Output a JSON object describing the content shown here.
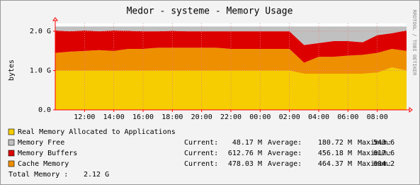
{
  "chart_data": {
    "type": "stacked-area",
    "title": "Medor - systeme - Memory Usage",
    "y_label": "bytes",
    "watermark": "RRDTOOL / TOBI OETIKER",
    "categories": [
      null,
      null,
      "12:00",
      null,
      "14:00",
      null,
      "16:00",
      null,
      "18:00",
      null,
      "20:00",
      null,
      "22:00",
      null,
      "00:00",
      null,
      "02:00",
      null,
      "04:00",
      null,
      "06:00",
      null,
      "08:00",
      null,
      null
    ],
    "ylim": [
      0,
      2.2
    ],
    "yticks": [
      {
        "value": 0,
        "label": "0.0"
      },
      {
        "value": 1,
        "label": "1.0 G"
      },
      {
        "value": 2,
        "label": "2.0 G"
      }
    ],
    "grid": true,
    "stat_labels": [
      "Current:",
      "Average:",
      "Maximum:"
    ],
    "series": [
      {
        "name": "Real Memory Allocated to Applications",
        "color": "#f5cd00",
        "values": [
          1.0,
          1.0,
          1.0,
          1.0,
          1.0,
          1.0,
          1.0,
          1.0,
          1.0,
          1.0,
          1.0,
          1.0,
          1.0,
          1.0,
          1.0,
          1.0,
          1.0,
          0.92,
          0.92,
          0.92,
          0.92,
          0.92,
          0.95,
          1.08,
          1.0
        ]
      },
      {
        "name": "Memory Free",
        "color": "#c0c0c0",
        "stats": [
          "48.17 M",
          "180.72 M",
          "543.6"
        ],
        "values": [
          0.1,
          0.12,
          0.1,
          0.12,
          0.1,
          0.11,
          0.12,
          0.12,
          0.11,
          0.12,
          0.12,
          0.12,
          0.12,
          0.12,
          0.12,
          0.12,
          0.12,
          0.47,
          0.42,
          0.37,
          0.37,
          0.4,
          0.22,
          0.17,
          0.1
        ]
      },
      {
        "name": "Memory Buffers",
        "color": "#dd0000",
        "stats": [
          "612.76 M",
          "456.18 M",
          "617.6"
        ],
        "values": [
          0.57,
          0.52,
          0.52,
          0.48,
          0.52,
          0.46,
          0.45,
          0.42,
          0.43,
          0.42,
          0.42,
          0.42,
          0.45,
          0.45,
          0.45,
          0.45,
          0.45,
          0.45,
          0.35,
          0.4,
          0.37,
          0.32,
          0.45,
          0.4,
          0.52
        ]
      },
      {
        "name": "Cache Memory",
        "color": "#ee8f00",
        "stats": [
          "478.03 M",
          "464.37 M",
          "604.2"
        ],
        "values": [
          0.45,
          0.48,
          0.5,
          0.52,
          0.5,
          0.55,
          0.55,
          0.58,
          0.58,
          0.58,
          0.58,
          0.58,
          0.55,
          0.55,
          0.55,
          0.55,
          0.55,
          0.28,
          0.43,
          0.43,
          0.46,
          0.48,
          0.5,
          0.47,
          0.5
        ]
      }
    ],
    "total_label": "Total Memory :",
    "total_value": "2.12 G"
  }
}
